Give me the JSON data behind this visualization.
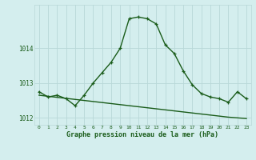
{
  "x": [
    0,
    1,
    2,
    3,
    4,
    5,
    6,
    7,
    8,
    9,
    10,
    11,
    12,
    13,
    14,
    15,
    16,
    17,
    18,
    19,
    20,
    21,
    22,
    23
  ],
  "y_curve": [
    1012.75,
    1012.6,
    1012.65,
    1012.55,
    1012.35,
    1012.65,
    1013.0,
    1013.3,
    1013.6,
    1014.0,
    1014.85,
    1014.9,
    1014.85,
    1014.7,
    1014.1,
    1013.85,
    1013.35,
    1012.95,
    1012.7,
    1012.6,
    1012.55,
    1012.45,
    1012.75,
    1012.55
  ],
  "y_line": [
    1012.65,
    1012.62,
    1012.59,
    1012.56,
    1012.53,
    1012.5,
    1012.47,
    1012.44,
    1012.41,
    1012.38,
    1012.35,
    1012.32,
    1012.29,
    1012.26,
    1012.23,
    1012.2,
    1012.17,
    1012.14,
    1012.11,
    1012.08,
    1012.05,
    1012.02,
    1012.0,
    1011.98
  ],
  "ylim": [
    1011.8,
    1015.25
  ],
  "yticks": [
    1012,
    1013,
    1014
  ],
  "xticks": [
    0,
    1,
    2,
    3,
    4,
    5,
    6,
    7,
    8,
    9,
    10,
    11,
    12,
    13,
    14,
    15,
    16,
    17,
    18,
    19,
    20,
    21,
    22,
    23
  ],
  "line_color": "#1a5c1a",
  "bg_color": "#d4eeee",
  "grid_color": "#b8d8d8",
  "xlabel": "Graphe pression niveau de la mer (hPa)",
  "xlabel_color": "#1a5c1a",
  "tick_color": "#1a5c1a",
  "marker": "+",
  "markersize": 3.5,
  "linewidth": 1.0
}
